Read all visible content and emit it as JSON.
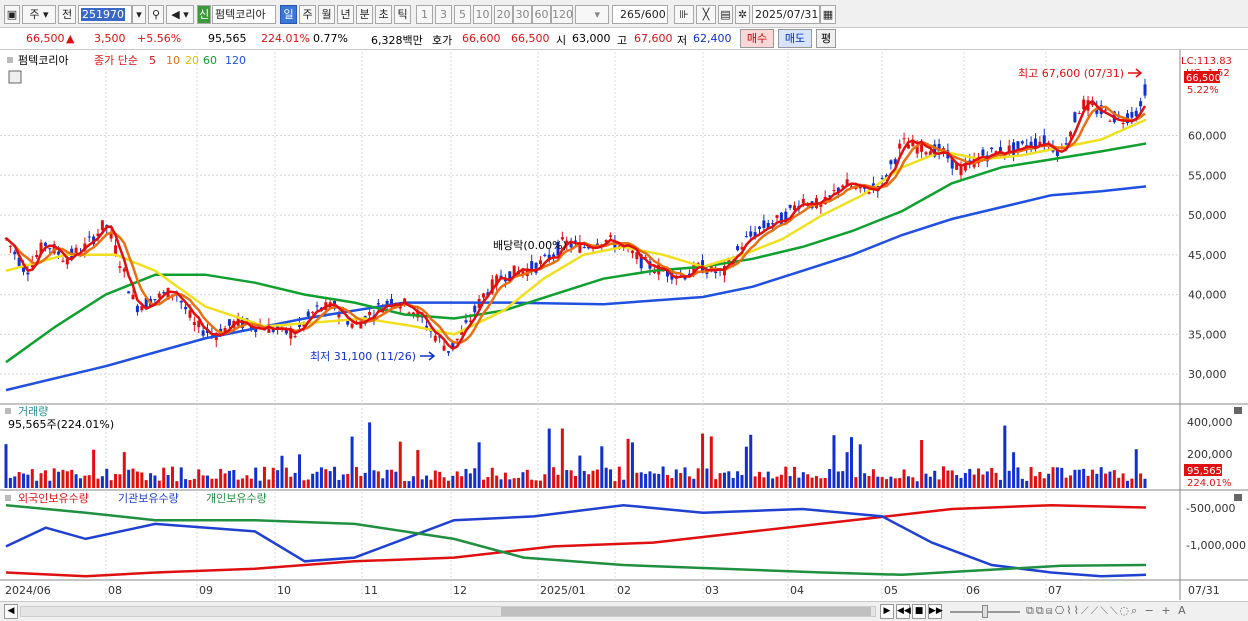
{
  "toolbar": {
    "period": "주",
    "adj": "전",
    "code": "251970",
    "stock_name": "펌텍코리아",
    "sin": "신",
    "periods": [
      "일",
      "주",
      "월",
      "년",
      "분",
      "초",
      "틱"
    ],
    "nums": [
      "1",
      "3",
      "5",
      "10",
      "20",
      "30",
      "60",
      "120"
    ],
    "count": "265",
    "count_total": "/600",
    "date": "2025/07/31"
  },
  "quote": {
    "price": "66,500",
    "arrow": "▲",
    "change": "3,500",
    "change_pct": "+5.56%",
    "volume": "95,565",
    "vol_pct": "224.01%",
    "turnover": "0.77%",
    "amount": "6,328백만",
    "hoga_label": "호가",
    "hoga1": "66,600",
    "hoga2": "66,500",
    "open_label": "시",
    "open": "63,000",
    "high_label": "고",
    "high": "67,600",
    "low_label": "저",
    "low": "62,400",
    "buy": "매수",
    "sell": "매도",
    "avg": "평"
  },
  "legend": {
    "name": "펌텍코리아",
    "label": "종가 단순",
    "ma": [
      "5",
      "10",
      "20",
      "60",
      "120"
    ],
    "ma_colors": [
      "#e01010",
      "#e87010",
      "#f0e020",
      "#10a030",
      "#2050e0"
    ]
  },
  "price_axis": [
    "60,000",
    "55,000",
    "50,000",
    "45,000",
    "40,000",
    "35,000",
    "30,000"
  ],
  "price_top": {
    "lc": "LC:113.83",
    "hc": "HC:-1.52",
    "cur": "66,500",
    "pct": "5.22%"
  },
  "annotations": {
    "high": "최고 67,600 (07/31)",
    "low": "최저 31,100 (11/26)",
    "div": "배당락(0.00%)"
  },
  "volume_panel": {
    "title": "거래량",
    "value": "95,565주(224.01%)",
    "axis": [
      "400,000",
      "200,000"
    ],
    "cur": "95,565",
    "pct": "224.01%"
  },
  "holder_panel": {
    "labels": [
      "외국인보유수량",
      "기관보유수량",
      "개인보유수량"
    ],
    "colors": [
      "#e01010",
      "#2040d0",
      "#209040"
    ],
    "axis": [
      "-500,000",
      "-1,000,000"
    ]
  },
  "x_labels": [
    "2024/06",
    "08",
    "09",
    "10",
    "11",
    "12",
    "2025/01",
    "02",
    "03",
    "04",
    "05",
    "06",
    "07",
    "07/31"
  ],
  "chart_data": {
    "type": "line",
    "title": "",
    "ylim": [
      26500,
      70500
    ],
    "ma120": [
      [
        0,
        28000
      ],
      [
        100,
        31000
      ],
      [
        200,
        34500
      ],
      [
        300,
        37000
      ],
      [
        400,
        39000
      ],
      [
        500,
        39000
      ],
      [
        600,
        38800
      ],
      [
        700,
        39700
      ],
      [
        750,
        41000
      ],
      [
        800,
        43000
      ],
      [
        850,
        45000
      ],
      [
        900,
        47500
      ],
      [
        950,
        49500
      ],
      [
        1000,
        51000
      ],
      [
        1050,
        52500
      ],
      [
        1100,
        53000
      ],
      [
        1145,
        53600
      ]
    ],
    "ma60": [
      [
        0,
        31500
      ],
      [
        50,
        36000
      ],
      [
        100,
        40000
      ],
      [
        150,
        42500
      ],
      [
        200,
        42500
      ],
      [
        250,
        41500
      ],
      [
        300,
        40000
      ],
      [
        350,
        39000
      ],
      [
        400,
        37500
      ],
      [
        450,
        37000
      ],
      [
        500,
        38000
      ],
      [
        550,
        40000
      ],
      [
        600,
        42000
      ],
      [
        650,
        43000
      ],
      [
        700,
        43500
      ],
      [
        750,
        44500
      ],
      [
        800,
        46000
      ],
      [
        850,
        48000
      ],
      [
        900,
        50500
      ],
      [
        950,
        54000
      ],
      [
        1000,
        56000
      ],
      [
        1050,
        57000
      ],
      [
        1100,
        58000
      ],
      [
        1145,
        59000
      ]
    ],
    "ma20": [
      [
        0,
        43000
      ],
      [
        60,
        45000
      ],
      [
        110,
        45000
      ],
      [
        150,
        43000
      ],
      [
        200,
        38500
      ],
      [
        260,
        36000
      ],
      [
        310,
        36500
      ],
      [
        360,
        37000
      ],
      [
        410,
        36000
      ],
      [
        450,
        35000
      ],
      [
        500,
        38000
      ],
      [
        540,
        42000
      ],
      [
        580,
        45000
      ],
      [
        620,
        46000
      ],
      [
        660,
        45000
      ],
      [
        700,
        43500
      ],
      [
        740,
        45000
      ],
      [
        780,
        47000
      ],
      [
        820,
        50000
      ],
      [
        860,
        52500
      ],
      [
        900,
        56000
      ],
      [
        940,
        58000
      ],
      [
        980,
        57000
      ],
      [
        1020,
        57500
      ],
      [
        1060,
        58500
      ],
      [
        1100,
        59500
      ],
      [
        1145,
        62000
      ]
    ],
    "price": [
      [
        0,
        47000
      ],
      [
        20,
        43000
      ],
      [
        40,
        46500
      ],
      [
        60,
        44500
      ],
      [
        80,
        46000
      ],
      [
        100,
        49000
      ],
      [
        115,
        44000
      ],
      [
        130,
        38500
      ],
      [
        150,
        39500
      ],
      [
        170,
        40500
      ],
      [
        190,
        36000
      ],
      [
        210,
        35000
      ],
      [
        230,
        36500
      ],
      [
        260,
        36000
      ],
      [
        290,
        35000
      ],
      [
        310,
        38000
      ],
      [
        330,
        38500
      ],
      [
        350,
        36000
      ],
      [
        370,
        38000
      ],
      [
        390,
        39500
      ],
      [
        410,
        38000
      ],
      [
        430,
        35000
      ],
      [
        445,
        33000
      ],
      [
        460,
        35500
      ],
      [
        480,
        40000
      ],
      [
        500,
        42500
      ],
      [
        520,
        43000
      ],
      [
        540,
        44000
      ],
      [
        560,
        46500
      ],
      [
        580,
        46000
      ],
      [
        600,
        47000
      ],
      [
        620,
        46000
      ],
      [
        640,
        44000
      ],
      [
        660,
        43000
      ],
      [
        680,
        42500
      ],
      [
        700,
        43500
      ],
      [
        720,
        42500
      ],
      [
        740,
        46500
      ],
      [
        760,
        48500
      ],
      [
        780,
        49500
      ],
      [
        800,
        52000
      ],
      [
        820,
        51000
      ],
      [
        840,
        54000
      ],
      [
        860,
        53000
      ],
      [
        880,
        54000
      ],
      [
        900,
        59000
      ],
      [
        920,
        58500
      ],
      [
        940,
        58000
      ],
      [
        960,
        55500
      ],
      [
        980,
        57500
      ],
      [
        1000,
        58000
      ],
      [
        1020,
        58500
      ],
      [
        1040,
        59500
      ],
      [
        1060,
        58000
      ],
      [
        1080,
        64000
      ],
      [
        1100,
        63000
      ],
      [
        1120,
        62000
      ],
      [
        1140,
        63500
      ],
      [
        1145,
        66500
      ]
    ],
    "holder_foreign": [
      [
        0,
        -1350000
      ],
      [
        80,
        -1400000
      ],
      [
        150,
        -1350000
      ],
      [
        250,
        -1300000
      ],
      [
        350,
        -1200000
      ],
      [
        450,
        -1150000
      ],
      [
        550,
        -1000000
      ],
      [
        650,
        -950000
      ],
      [
        750,
        -800000
      ],
      [
        850,
        -650000
      ],
      [
        950,
        -500000
      ],
      [
        1050,
        -450000
      ],
      [
        1145,
        -480000
      ]
    ],
    "holder_institution": [
      [
        0,
        -1000000
      ],
      [
        40,
        -750000
      ],
      [
        80,
        -900000
      ],
      [
        150,
        -700000
      ],
      [
        250,
        -800000
      ],
      [
        300,
        -1200000
      ],
      [
        350,
        -1150000
      ],
      [
        400,
        -900000
      ],
      [
        450,
        -650000
      ],
      [
        530,
        -600000
      ],
      [
        620,
        -450000
      ],
      [
        700,
        -550000
      ],
      [
        800,
        -500000
      ],
      [
        880,
        -600000
      ],
      [
        930,
        -950000
      ],
      [
        990,
        -1250000
      ],
      [
        1050,
        -1350000
      ],
      [
        1100,
        -1400000
      ],
      [
        1145,
        -1380000
      ]
    ],
    "holder_individual": [
      [
        0,
        -450000
      ],
      [
        80,
        -550000
      ],
      [
        150,
        -650000
      ],
      [
        250,
        -650000
      ],
      [
        350,
        -700000
      ],
      [
        450,
        -900000
      ],
      [
        520,
        -1150000
      ],
      [
        620,
        -1250000
      ],
      [
        720,
        -1300000
      ],
      [
        820,
        -1350000
      ],
      [
        900,
        -1380000
      ],
      [
        980,
        -1320000
      ],
      [
        1060,
        -1260000
      ],
      [
        1145,
        -1250000
      ]
    ]
  }
}
